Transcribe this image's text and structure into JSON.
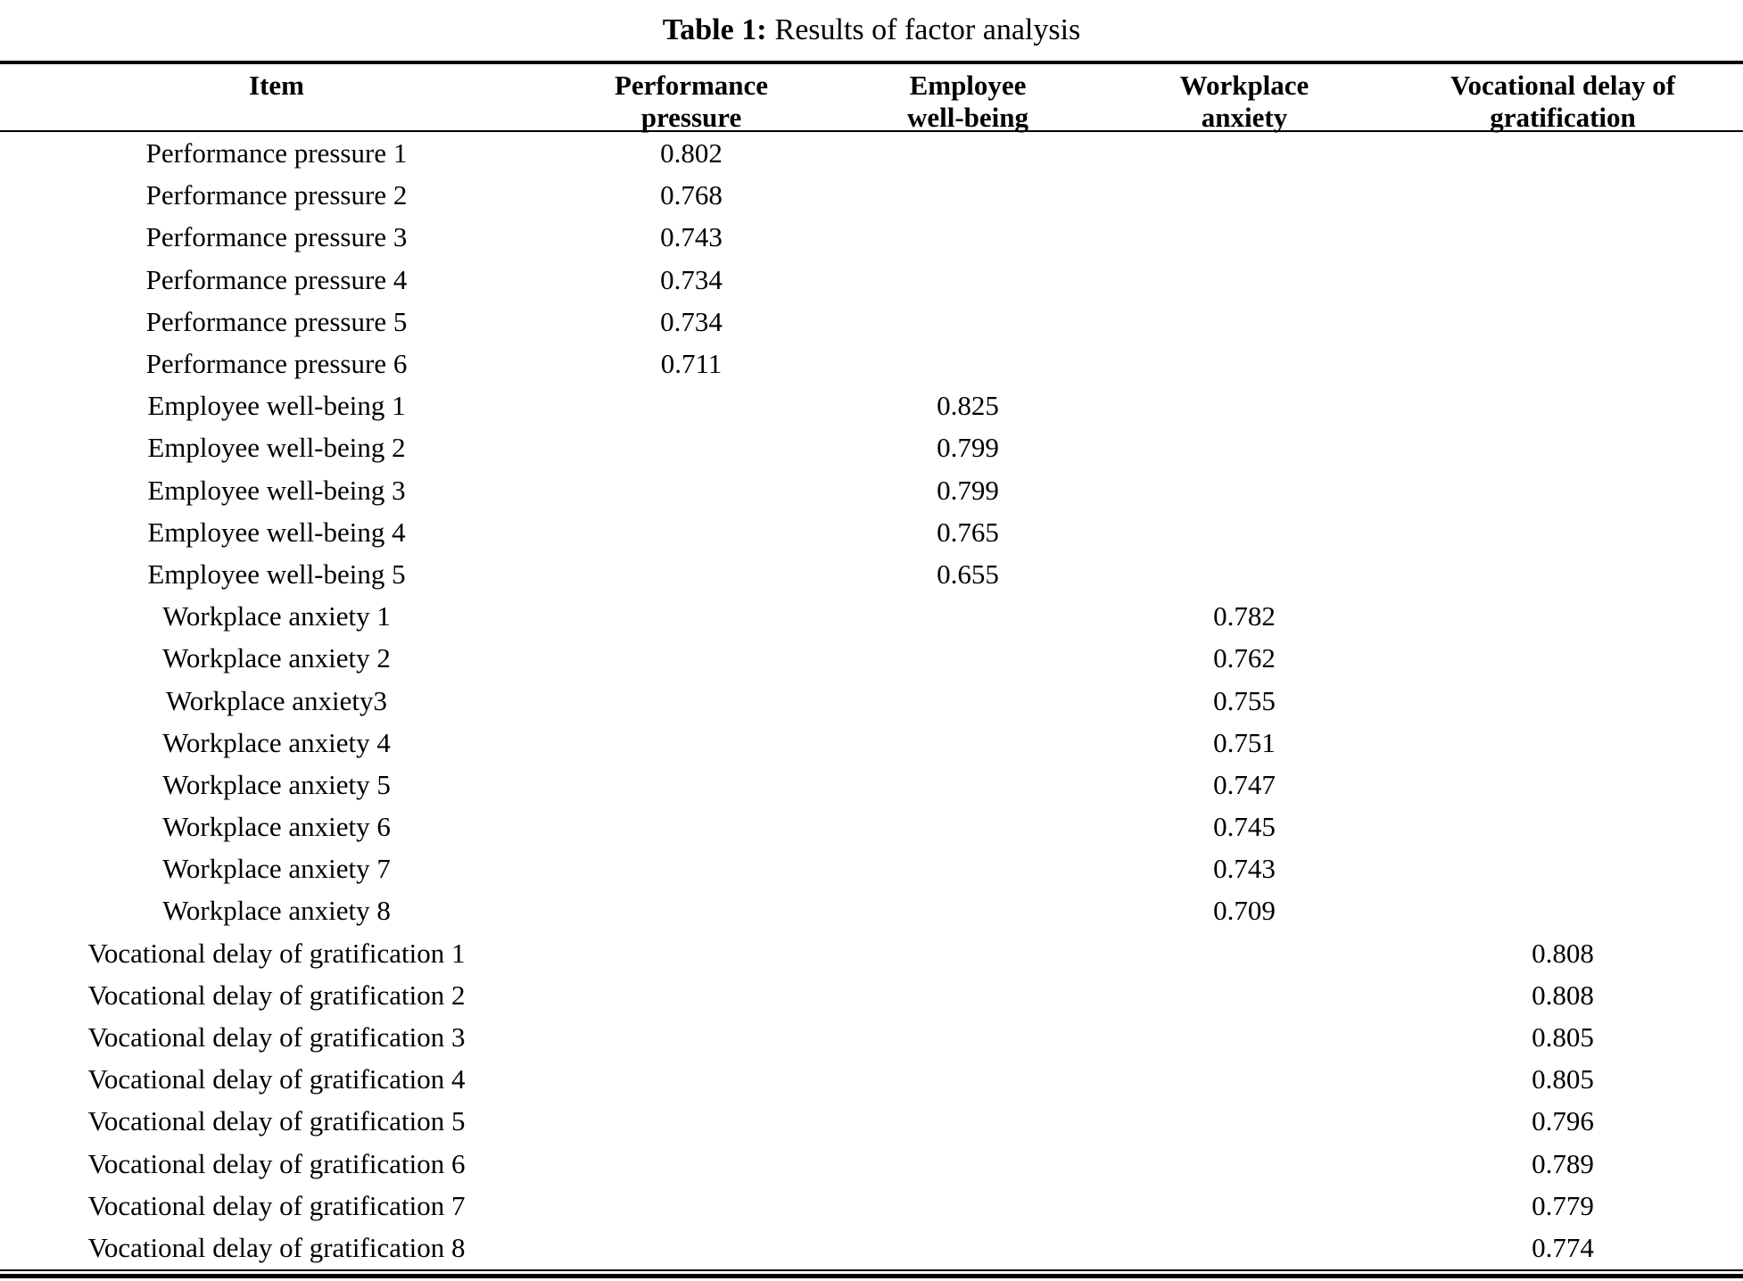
{
  "title": {
    "label": "Table 1:",
    "rest": "Results of factor analysis"
  },
  "table": {
    "columns": [
      {
        "lines": [
          "Item"
        ]
      },
      {
        "lines": [
          "Performance",
          "pressure"
        ]
      },
      {
        "lines": [
          "Employee",
          "well-being"
        ]
      },
      {
        "lines": [
          "Workplace",
          "anxiety"
        ]
      },
      {
        "lines": [
          "Vocational delay of",
          "gratification"
        ]
      }
    ],
    "rows": [
      {
        "item": "Performance pressure 1",
        "values": [
          "0.802",
          "",
          "",
          ""
        ]
      },
      {
        "item": "Performance pressure 2",
        "values": [
          "0.768",
          "",
          "",
          ""
        ]
      },
      {
        "item": "Performance pressure 3",
        "values": [
          "0.743",
          "",
          "",
          ""
        ]
      },
      {
        "item": "Performance pressure 4",
        "values": [
          "0.734",
          "",
          "",
          ""
        ]
      },
      {
        "item": "Performance pressure 5",
        "values": [
          "0.734",
          "",
          "",
          ""
        ]
      },
      {
        "item": "Performance pressure 6",
        "values": [
          "0.711",
          "",
          "",
          ""
        ]
      },
      {
        "item": "Employee well-being 1",
        "values": [
          "",
          "0.825",
          "",
          ""
        ]
      },
      {
        "item": "Employee well-being 2",
        "values": [
          "",
          "0.799",
          "",
          ""
        ]
      },
      {
        "item": "Employee well-being 3",
        "values": [
          "",
          "0.799",
          "",
          ""
        ]
      },
      {
        "item": "Employee well-being 4",
        "values": [
          "",
          "0.765",
          "",
          ""
        ]
      },
      {
        "item": "Employee well-being 5",
        "values": [
          "",
          "0.655",
          "",
          ""
        ]
      },
      {
        "item": "Workplace anxiety 1",
        "values": [
          "",
          "",
          "0.782",
          ""
        ]
      },
      {
        "item": "Workplace anxiety 2",
        "values": [
          "",
          "",
          "0.762",
          ""
        ]
      },
      {
        "item": "Workplace anxiety3",
        "values": [
          "",
          "",
          "0.755",
          ""
        ]
      },
      {
        "item": "Workplace anxiety 4",
        "values": [
          "",
          "",
          "0.751",
          ""
        ]
      },
      {
        "item": "Workplace anxiety 5",
        "values": [
          "",
          "",
          "0.747",
          ""
        ]
      },
      {
        "item": "Workplace anxiety 6",
        "values": [
          "",
          "",
          "0.745",
          ""
        ]
      },
      {
        "item": "Workplace anxiety 7",
        "values": [
          "",
          "",
          "0.743",
          ""
        ]
      },
      {
        "item": "Workplace anxiety 8",
        "values": [
          "",
          "",
          "0.709",
          ""
        ]
      },
      {
        "item": "Vocational delay of gratification 1",
        "values": [
          "",
          "",
          "",
          "0.808"
        ]
      },
      {
        "item": "Vocational delay of gratification 2",
        "values": [
          "",
          "",
          "",
          "0.808"
        ]
      },
      {
        "item": "Vocational delay of gratification 3",
        "values": [
          "",
          "",
          "",
          "0.805"
        ]
      },
      {
        "item": "Vocational delay of gratification 4",
        "values": [
          "",
          "",
          "",
          "0.805"
        ]
      },
      {
        "item": "Vocational delay of gratification 5",
        "values": [
          "",
          "",
          "",
          "0.796"
        ]
      },
      {
        "item": "Vocational delay of gratification 6",
        "values": [
          "",
          "",
          "",
          "0.789"
        ]
      },
      {
        "item": "Vocational delay of gratification 7",
        "values": [
          "",
          "",
          "",
          "0.779"
        ]
      },
      {
        "item": "Vocational delay of gratification 8",
        "values": [
          "",
          "",
          "",
          "0.774"
        ]
      }
    ]
  }
}
